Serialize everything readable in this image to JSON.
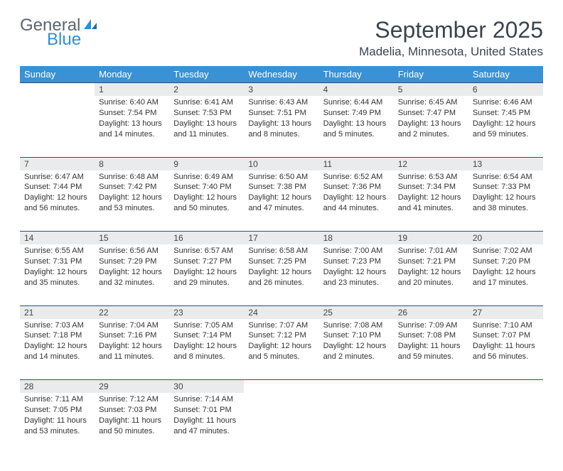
{
  "logo": {
    "word1": "General",
    "word2": "Blue"
  },
  "title": "September 2025",
  "location": "Madelia, Minnesota, United States",
  "headerColor": "#3a91d3",
  "accentLine": "#2a5080",
  "dayHeaders": [
    "Sunday",
    "Monday",
    "Tuesday",
    "Wednesday",
    "Thursday",
    "Friday",
    "Saturday"
  ],
  "weeks": [
    {
      "nums": [
        "",
        "1",
        "2",
        "3",
        "4",
        "5",
        "6"
      ],
      "cells": [
        {
          "empty": true
        },
        {
          "sunrise": "Sunrise: 6:40 AM",
          "sunset": "Sunset: 7:54 PM",
          "day1": "Daylight: 13 hours",
          "day2": "and 14 minutes."
        },
        {
          "sunrise": "Sunrise: 6:41 AM",
          "sunset": "Sunset: 7:53 PM",
          "day1": "Daylight: 13 hours",
          "day2": "and 11 minutes."
        },
        {
          "sunrise": "Sunrise: 6:43 AM",
          "sunset": "Sunset: 7:51 PM",
          "day1": "Daylight: 13 hours",
          "day2": "and 8 minutes."
        },
        {
          "sunrise": "Sunrise: 6:44 AM",
          "sunset": "Sunset: 7:49 PM",
          "day1": "Daylight: 13 hours",
          "day2": "and 5 minutes."
        },
        {
          "sunrise": "Sunrise: 6:45 AM",
          "sunset": "Sunset: 7:47 PM",
          "day1": "Daylight: 13 hours",
          "day2": "and 2 minutes."
        },
        {
          "sunrise": "Sunrise: 6:46 AM",
          "sunset": "Sunset: 7:45 PM",
          "day1": "Daylight: 12 hours",
          "day2": "and 59 minutes."
        }
      ]
    },
    {
      "nums": [
        "7",
        "8",
        "9",
        "10",
        "11",
        "12",
        "13"
      ],
      "cells": [
        {
          "sunrise": "Sunrise: 6:47 AM",
          "sunset": "Sunset: 7:44 PM",
          "day1": "Daylight: 12 hours",
          "day2": "and 56 minutes."
        },
        {
          "sunrise": "Sunrise: 6:48 AM",
          "sunset": "Sunset: 7:42 PM",
          "day1": "Daylight: 12 hours",
          "day2": "and 53 minutes."
        },
        {
          "sunrise": "Sunrise: 6:49 AM",
          "sunset": "Sunset: 7:40 PM",
          "day1": "Daylight: 12 hours",
          "day2": "and 50 minutes."
        },
        {
          "sunrise": "Sunrise: 6:50 AM",
          "sunset": "Sunset: 7:38 PM",
          "day1": "Daylight: 12 hours",
          "day2": "and 47 minutes."
        },
        {
          "sunrise": "Sunrise: 6:52 AM",
          "sunset": "Sunset: 7:36 PM",
          "day1": "Daylight: 12 hours",
          "day2": "and 44 minutes."
        },
        {
          "sunrise": "Sunrise: 6:53 AM",
          "sunset": "Sunset: 7:34 PM",
          "day1": "Daylight: 12 hours",
          "day2": "and 41 minutes."
        },
        {
          "sunrise": "Sunrise: 6:54 AM",
          "sunset": "Sunset: 7:33 PM",
          "day1": "Daylight: 12 hours",
          "day2": "and 38 minutes."
        }
      ]
    },
    {
      "nums": [
        "14",
        "15",
        "16",
        "17",
        "18",
        "19",
        "20"
      ],
      "cells": [
        {
          "sunrise": "Sunrise: 6:55 AM",
          "sunset": "Sunset: 7:31 PM",
          "day1": "Daylight: 12 hours",
          "day2": "and 35 minutes."
        },
        {
          "sunrise": "Sunrise: 6:56 AM",
          "sunset": "Sunset: 7:29 PM",
          "day1": "Daylight: 12 hours",
          "day2": "and 32 minutes."
        },
        {
          "sunrise": "Sunrise: 6:57 AM",
          "sunset": "Sunset: 7:27 PM",
          "day1": "Daylight: 12 hours",
          "day2": "and 29 minutes."
        },
        {
          "sunrise": "Sunrise: 6:58 AM",
          "sunset": "Sunset: 7:25 PM",
          "day1": "Daylight: 12 hours",
          "day2": "and 26 minutes."
        },
        {
          "sunrise": "Sunrise: 7:00 AM",
          "sunset": "Sunset: 7:23 PM",
          "day1": "Daylight: 12 hours",
          "day2": "and 23 minutes."
        },
        {
          "sunrise": "Sunrise: 7:01 AM",
          "sunset": "Sunset: 7:21 PM",
          "day1": "Daylight: 12 hours",
          "day2": "and 20 minutes."
        },
        {
          "sunrise": "Sunrise: 7:02 AM",
          "sunset": "Sunset: 7:20 PM",
          "day1": "Daylight: 12 hours",
          "day2": "and 17 minutes."
        }
      ]
    },
    {
      "nums": [
        "21",
        "22",
        "23",
        "24",
        "25",
        "26",
        "27"
      ],
      "cells": [
        {
          "sunrise": "Sunrise: 7:03 AM",
          "sunset": "Sunset: 7:18 PM",
          "day1": "Daylight: 12 hours",
          "day2": "and 14 minutes."
        },
        {
          "sunrise": "Sunrise: 7:04 AM",
          "sunset": "Sunset: 7:16 PM",
          "day1": "Daylight: 12 hours",
          "day2": "and 11 minutes."
        },
        {
          "sunrise": "Sunrise: 7:05 AM",
          "sunset": "Sunset: 7:14 PM",
          "day1": "Daylight: 12 hours",
          "day2": "and 8 minutes."
        },
        {
          "sunrise": "Sunrise: 7:07 AM",
          "sunset": "Sunset: 7:12 PM",
          "day1": "Daylight: 12 hours",
          "day2": "and 5 minutes."
        },
        {
          "sunrise": "Sunrise: 7:08 AM",
          "sunset": "Sunset: 7:10 PM",
          "day1": "Daylight: 12 hours",
          "day2": "and 2 minutes."
        },
        {
          "sunrise": "Sunrise: 7:09 AM",
          "sunset": "Sunset: 7:08 PM",
          "day1": "Daylight: 11 hours",
          "day2": "and 59 minutes."
        },
        {
          "sunrise": "Sunrise: 7:10 AM",
          "sunset": "Sunset: 7:07 PM",
          "day1": "Daylight: 11 hours",
          "day2": "and 56 minutes."
        }
      ]
    },
    {
      "nums": [
        "28",
        "29",
        "30",
        "",
        "",
        "",
        ""
      ],
      "cells": [
        {
          "sunrise": "Sunrise: 7:11 AM",
          "sunset": "Sunset: 7:05 PM",
          "day1": "Daylight: 11 hours",
          "day2": "and 53 minutes."
        },
        {
          "sunrise": "Sunrise: 7:12 AM",
          "sunset": "Sunset: 7:03 PM",
          "day1": "Daylight: 11 hours",
          "day2": "and 50 minutes."
        },
        {
          "sunrise": "Sunrise: 7:14 AM",
          "sunset": "Sunset: 7:01 PM",
          "day1": "Daylight: 11 hours",
          "day2": "and 47 minutes."
        },
        {
          "empty": true
        },
        {
          "empty": true
        },
        {
          "empty": true
        },
        {
          "empty": true
        }
      ]
    }
  ]
}
